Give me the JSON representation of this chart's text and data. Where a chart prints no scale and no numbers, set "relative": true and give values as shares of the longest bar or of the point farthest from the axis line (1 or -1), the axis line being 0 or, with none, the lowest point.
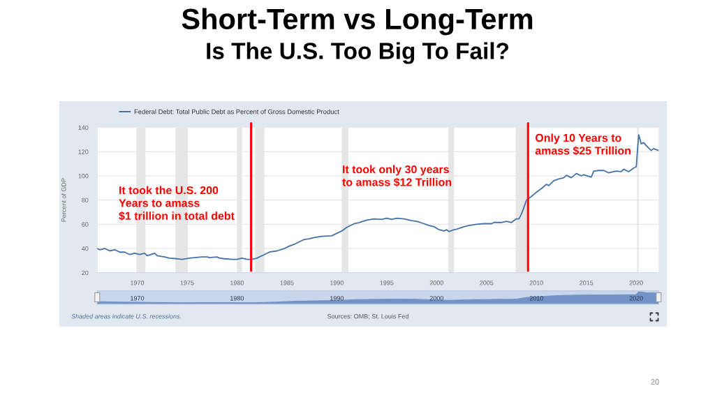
{
  "chart_data": [
    {
      "type": "line",
      "title": "Short-Term vs Long-Term",
      "subtitle": "Is The U.S. Too Big To Fail?",
      "ylabel": "Percent of GDP",
      "series": [
        {
          "name": "Federal Debt: Total Public Debt as Percent of Gross Domestic Product",
          "color": "#4572a7",
          "x": [
            "1966-01",
            "1966-04",
            "1966-10",
            "1967-04",
            "1967-10",
            "1968-04",
            "1968-10",
            "1969-04",
            "1969-10",
            "1970-04",
            "1970-10",
            "1971-01",
            "1971-10",
            "1972-01",
            "1972-10",
            "1973-04",
            "1974-01",
            "1974-07",
            "1975-04",
            "1975-10",
            "1976-07",
            "1977-01",
            "1977-04",
            "1978-01",
            "1978-04",
            "1978-10",
            "1979-07",
            "1980-01",
            "1980-07",
            "1981-01",
            "1981-07",
            "1982-01",
            "1982-04",
            "1982-10",
            "1983-04",
            "1984-01",
            "1984-10",
            "1985-04",
            "1985-10",
            "1986-04",
            "1986-10",
            "1987-04",
            "1987-10",
            "1988-07",
            "1989-07",
            "1990-01",
            "1990-07",
            "1991-01",
            "1991-04",
            "1991-10",
            "1992-04",
            "1993-01",
            "1993-10",
            "1994-07",
            "1995-01",
            "1995-07",
            "1996-01",
            "1996-10",
            "1997-07",
            "1998-01",
            "1998-10",
            "1999-04",
            "1999-10",
            "2000-04",
            "2000-10",
            "2001-01",
            "2001-04",
            "2001-10",
            "2002-01",
            "2002-10",
            "2003-04",
            "2004-01",
            "2004-10",
            "2005-07",
            "2005-10",
            "2006-07",
            "2007-01",
            "2007-07",
            "2008-01",
            "2008-04",
            "2008-07",
            "2008-10",
            "2009-01",
            "2009-07",
            "2010-01",
            "2010-07",
            "2011-01",
            "2011-04",
            "2011-10",
            "2012-04",
            "2012-10",
            "2013-01",
            "2013-07",
            "2014-01",
            "2014-07",
            "2014-10",
            "2015-07",
            "2015-10",
            "2016-04",
            "2016-10",
            "2017-04",
            "2017-10",
            "2018-01",
            "2018-07",
            "2018-10",
            "2019-04",
            "2019-10",
            "2020-01",
            "2020-04",
            "2020-07",
            "2020-10",
            "2021-01",
            "2021-07",
            "2021-10",
            "2022-04"
          ],
          "values": [
            40,
            39,
            40,
            38,
            39,
            37,
            37,
            35,
            36,
            35,
            36,
            34,
            36,
            34,
            33,
            32,
            31.5,
            31,
            32,
            32.5,
            33,
            33,
            32.5,
            33,
            32,
            31.5,
            31,
            31,
            32,
            31,
            31,
            32,
            33,
            35,
            37,
            38,
            40,
            42,
            43.5,
            45.5,
            47.5,
            48,
            49,
            50,
            50.5,
            52.5,
            54.5,
            57.5,
            58.5,
            60.5,
            61.5,
            63.5,
            64.5,
            64,
            65,
            64,
            65,
            64.5,
            63,
            62.5,
            60.5,
            59,
            58,
            55.5,
            54.5,
            55.5,
            54,
            55.5,
            56,
            58,
            59,
            60,
            60.5,
            60.5,
            61.5,
            61.5,
            62.5,
            61.5,
            64.5,
            64.5,
            68.5,
            74,
            80,
            83,
            86.5,
            89.5,
            93,
            92,
            96,
            97.5,
            98.5,
            100.5,
            98.5,
            102,
            100,
            101,
            99,
            104,
            104.5,
            104.5,
            102.5,
            103.5,
            104,
            103.5,
            105.5,
            103.5,
            106.5,
            107.5,
            134,
            126.5,
            127.5,
            125,
            121,
            122.5,
            121
          ]
        }
      ],
      "xlim": [
        "1966-01",
        "2022-04"
      ],
      "xticks": [
        {
          "value": "1970-01",
          "label": "1970"
        },
        {
          "value": "1975-01",
          "label": "1975"
        },
        {
          "value": "1980-01",
          "label": "1980"
        },
        {
          "value": "1985-01",
          "label": "1985"
        },
        {
          "value": "1990-01",
          "label": "1990"
        },
        {
          "value": "1995-01",
          "label": "1995"
        },
        {
          "value": "2000-01",
          "label": "2000"
        },
        {
          "value": "2005-01",
          "label": "2005"
        },
        {
          "value": "2010-01",
          "label": "2010"
        },
        {
          "value": "2015-01",
          "label": "2015"
        },
        {
          "value": "2020-01",
          "label": "2020"
        }
      ],
      "ylim": [
        20,
        140
      ],
      "yticks": [
        20,
        40,
        60,
        80,
        100,
        120,
        140
      ],
      "grid": "y",
      "legend": "top left",
      "bands": [
        {
          "axis": "x",
          "from": "1969-12",
          "to": "1970-11",
          "color": "#e6e6e6"
        },
        {
          "axis": "x",
          "from": "1973-11",
          "to": "1975-02",
          "color": "#e6e6e6"
        },
        {
          "axis": "x",
          "from": "1980-01",
          "to": "1980-07",
          "color": "#e6e6e6"
        },
        {
          "axis": "x",
          "from": "1981-11",
          "to": "1982-10",
          "color": "#e6e6e6"
        },
        {
          "axis": "x",
          "from": "1990-07",
          "to": "1991-03",
          "color": "#e6e6e6"
        },
        {
          "axis": "x",
          "from": "2001-03",
          "to": "2001-10",
          "color": "#e6e6e6"
        },
        {
          "axis": "x",
          "from": "2007-12",
          "to": "2009-03",
          "color": "#e6e6e6"
        },
        {
          "axis": "x",
          "from": "2020-02",
          "to": "2020-04",
          "color": "#e6e6e6"
        }
      ],
      "ref_lines": [
        {
          "axis": "x",
          "value": "1981-06",
          "color": "#ff0000"
        },
        {
          "axis": "x",
          "value": "2009-03",
          "color": "#ff0000"
        }
      ],
      "annotations": [
        "It took the U.S. 200\nYears to amass\n$1 trillion in total debt",
        "It took only 30 years\nto amass $12 Trillion",
        "Only 10 Years to\namass $25 Trillion",
        "Shaded areas indicate U.S. recessions.",
        "Sources: OMB; St. Louis Fed",
        "20"
      ]
    },
    {
      "type": "area",
      "relative": true,
      "series": [
        {
          "color": "#7393c7",
          "x": [
            "1966-01",
            "1970-01",
            "1974-07",
            "1977-01",
            "1981-07",
            "1984-01",
            "1986-01",
            "1988-01",
            "1990-01",
            "1992-01",
            "1994-01",
            "1996-01",
            "1998-01",
            "2000-01",
            "2001-04",
            "2004-01",
            "2008-01",
            "2009-01",
            "2010-01",
            "2012-01",
            "2014-01",
            "2016-01",
            "2018-01",
            "2020-01",
            "2020-04",
            "2021-01",
            "2022-04"
          ],
          "values": [
            0.09,
            0.04,
            0.0,
            0.02,
            0.0,
            0.07,
            0.14,
            0.17,
            0.21,
            0.29,
            0.32,
            0.33,
            0.31,
            0.24,
            0.22,
            0.28,
            0.33,
            0.48,
            0.54,
            0.64,
            0.69,
            0.71,
            0.71,
            0.74,
            1.0,
            0.91,
            0.87
          ]
        }
      ],
      "xlim": [
        "1966-01",
        "2022-04"
      ],
      "xticks": [
        {
          "value": "1970-01",
          "label": "1970"
        },
        {
          "value": "1980-01",
          "label": "1980"
        },
        {
          "value": "1990-01",
          "label": "1990"
        },
        {
          "value": "2000-01",
          "label": "2000"
        },
        {
          "value": "2010-01",
          "label": "2010"
        },
        {
          "value": "2020-01",
          "label": "2020"
        }
      ]
    }
  ]
}
